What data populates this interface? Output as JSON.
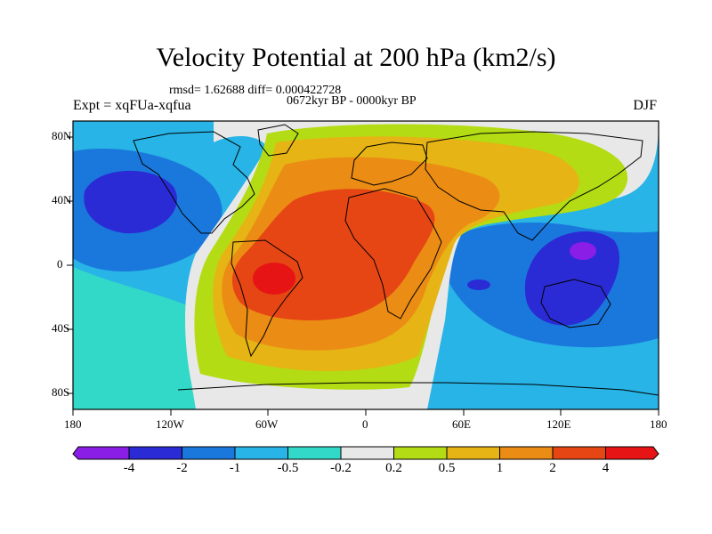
{
  "header": {
    "title": "Velocity Potential at 200 hPa (km2/s)",
    "stats": "rmsd= 1.62688 diff= 0.000422728",
    "period": "0672kyr BP - 0000kyr BP",
    "experiment": "Expt = xqFUa-xqfua",
    "season": "DJF"
  },
  "axes": {
    "lat_ticks": [
      "80N",
      "40N",
      "0",
      "40S",
      "80S"
    ],
    "lon_ticks": [
      "180",
      "120W",
      "60W",
      "0",
      "60E",
      "120E",
      "180"
    ]
  },
  "colorbar": {
    "labels": [
      "-4",
      "-2",
      "-1",
      "-0.5",
      "-0.2",
      "0.2",
      "0.5",
      "1",
      "2",
      "4"
    ],
    "colors": [
      "#8a1ee6",
      "#2b2bd6",
      "#1a78dc",
      "#28b4e6",
      "#32d8c8",
      "#e8e8e8",
      "#b4dc14",
      "#e6b414",
      "#eb8c14",
      "#e64614",
      "#e61414"
    ]
  },
  "map": {
    "projection": "cylindrical-equidistant",
    "lon_range": [
      -180,
      180
    ],
    "lat_range": [
      -90,
      90
    ]
  }
}
